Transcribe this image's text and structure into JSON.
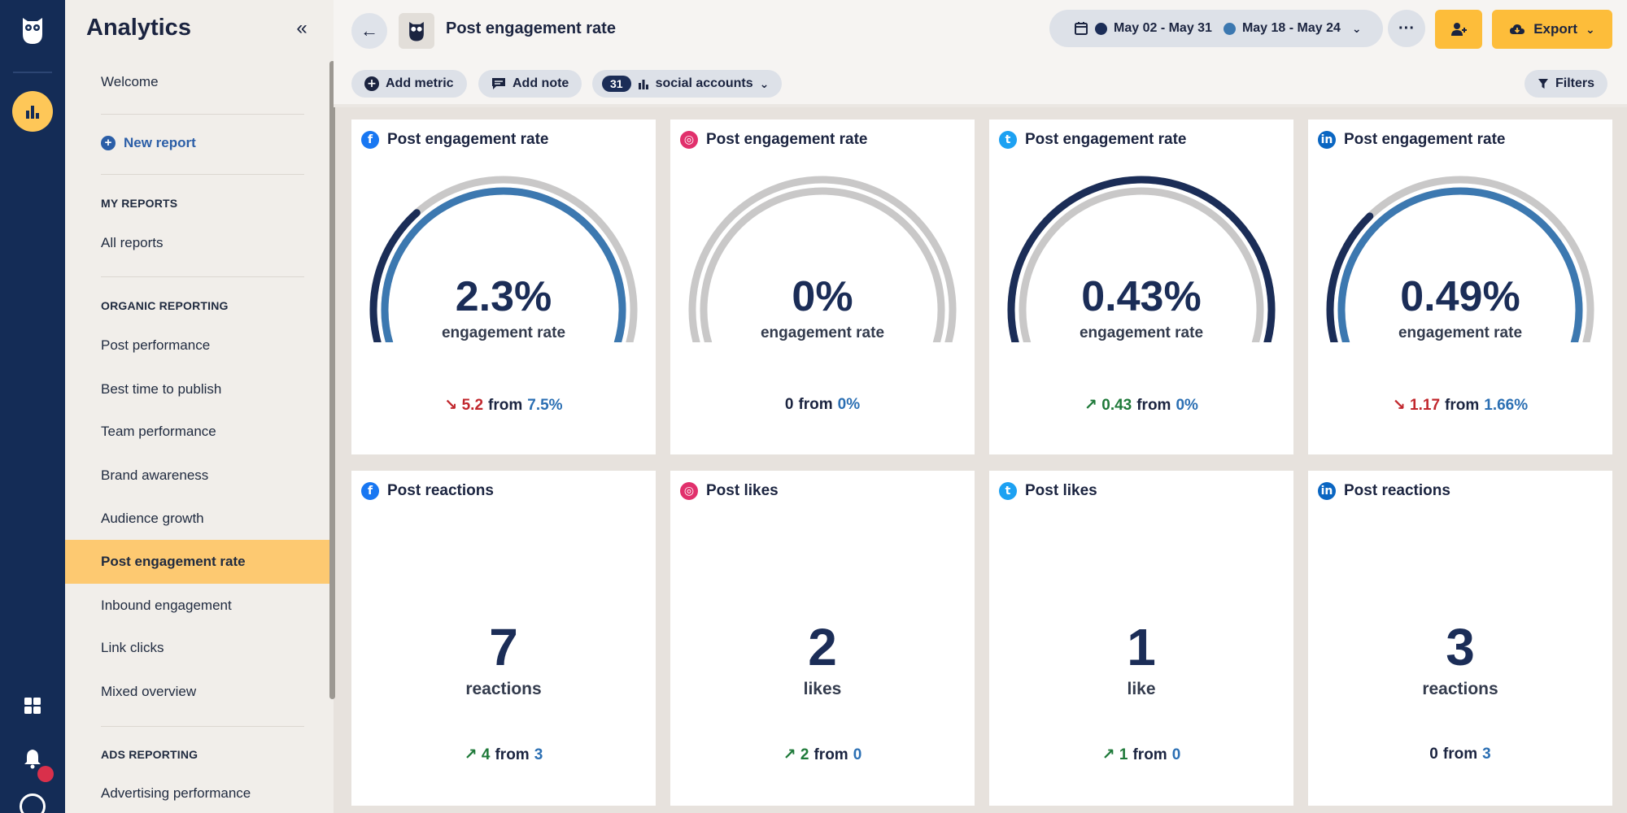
{
  "sidebar": {
    "title": "Analytics",
    "welcome": "Welcome",
    "new_report": "New report",
    "my_reports_heading": "MY REPORTS",
    "all_reports": "All reports",
    "organic_heading": "ORGANIC REPORTING",
    "organic_items": [
      "Post performance",
      "Best time to publish",
      "Team performance",
      "Brand awareness",
      "Audience growth",
      "Post engagement rate",
      "Inbound engagement",
      "Link clicks",
      "Mixed overview"
    ],
    "ads_heading": "ADS REPORTING",
    "ads_items": [
      "Advertising performance"
    ]
  },
  "header": {
    "title": "Post engagement rate",
    "date_range_1": "May 02 - May 31",
    "date_range_2": "May 18 - May 24",
    "export_label": "Export",
    "add_metric": "Add metric",
    "add_note": "Add note",
    "accounts_count": "31",
    "accounts_label": "social accounts",
    "filters_label": "Filters"
  },
  "colors": {
    "facebook": "#1877f2",
    "instagram": "#e1306c",
    "twitter": "#1da1f2",
    "linkedin": "#0a66c2",
    "current_range": "#1b2d57",
    "previous_range": "#3c78b0"
  },
  "gauge_cards": [
    {
      "network": "facebook",
      "title": "Post engagement rate",
      "value": "2.3%",
      "label": "engagement rate",
      "delta": "5.2",
      "delta_dir": "down",
      "from_word": "from",
      "prev": "7.5%",
      "current_fill": 0.31,
      "previous_fill": 1.0
    },
    {
      "network": "instagram",
      "title": "Post engagement rate",
      "value": "0%",
      "label": "engagement rate",
      "delta": "0",
      "delta_dir": "none",
      "from_word": "from",
      "prev": "0%",
      "current_fill": 0.0,
      "previous_fill": 0.0
    },
    {
      "network": "twitter",
      "title": "Post engagement rate",
      "value": "0.43%",
      "label": "engagement rate",
      "delta": "0.43",
      "delta_dir": "up",
      "from_word": "from",
      "prev": "0%",
      "current_fill": 1.0,
      "previous_fill": 0.0
    },
    {
      "network": "linkedin",
      "title": "Post engagement rate",
      "value": "0.49%",
      "label": "engagement rate",
      "delta": "1.17",
      "delta_dir": "down",
      "from_word": "from",
      "prev": "1.66%",
      "current_fill": 0.3,
      "previous_fill": 1.0
    }
  ],
  "count_cards": [
    {
      "network": "facebook",
      "title": "Post reactions",
      "value": "7",
      "label": "reactions",
      "delta": "4",
      "delta_dir": "up",
      "from_word": "from",
      "prev": "3"
    },
    {
      "network": "instagram",
      "title": "Post likes",
      "value": "2",
      "label": "likes",
      "delta": "2",
      "delta_dir": "up",
      "from_word": "from",
      "prev": "0"
    },
    {
      "network": "twitter",
      "title": "Post likes",
      "value": "1",
      "label": "like",
      "delta": "1",
      "delta_dir": "up",
      "from_word": "from",
      "prev": "0"
    },
    {
      "network": "linkedin",
      "title": "Post reactions",
      "value": "3",
      "label": "reactions",
      "delta": "0",
      "delta_dir": "none",
      "from_word": "from",
      "prev": "3"
    }
  ]
}
